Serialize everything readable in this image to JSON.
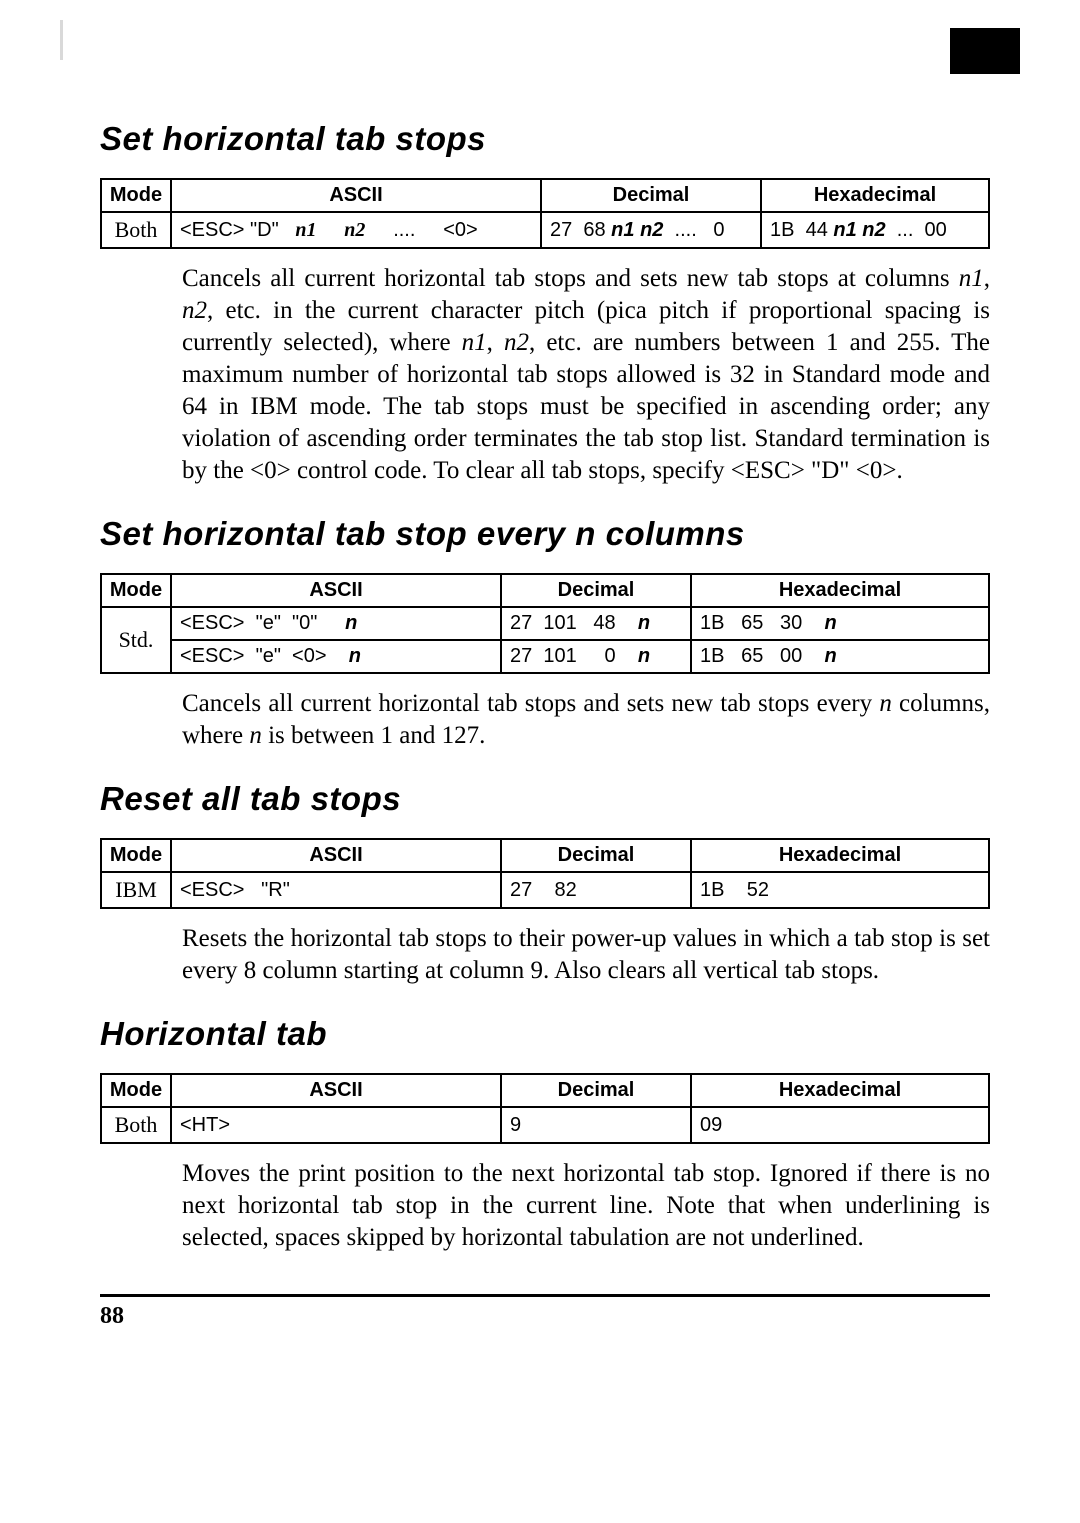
{
  "page_number": "88",
  "sections": [
    {
      "title": "Set horizontal tab stops",
      "table": {
        "headers": [
          "Mode",
          "ASCII",
          "Decimal",
          "Hexadecimal"
        ],
        "rows": [
          {
            "mode": "Both",
            "ascii_html": "&lt;ESC&gt; \"D\"&nbsp;&nbsp;&nbsp;<span class='it'>n1</span>&nbsp;&nbsp;&nbsp;&nbsp;&nbsp;<span class='it'>n2</span>&nbsp;&nbsp;&nbsp;&nbsp;&nbsp;....&nbsp;&nbsp;&nbsp;&nbsp;&nbsp;&lt;0&gt;",
            "dec_html": "27&nbsp;&nbsp;68&nbsp;<span class='it2'>n1</span>&nbsp;<span class='it2'>n2</span>&nbsp;&nbsp;....&nbsp;&nbsp;&nbsp;0",
            "hex_html": "1B&nbsp;&nbsp;44&nbsp;<span class='it2'>n1</span>&nbsp;<span class='it2'>n2</span>&nbsp;&nbsp;...&nbsp;&nbsp;00"
          }
        ]
      },
      "desc_html": "Cancels all current horizontal tab stops and sets new tab stops at columns <span class='it-s'>n1</span>, <span class='it-s'>n2</span>, etc. in the current character pitch (pica pitch if proportional spacing is currently selected), where <span class='it-s'>n1</span>, <span class='it-s'>n2</span>, etc. are numbers between 1 and 255. The maximum number of horizontal tab stops allowed is 32 in Standard mode and 64 in IBM mode. The tab stops must be specified in ascending order; any violation of ascending order terminates the tab stop list. Standard termination is by the &lt;0&gt; control code. To clear all tab stops, specify &lt;ESC&gt; \"D\" &lt;0&gt;."
    },
    {
      "title": "Set horizontal tab stop every n columns",
      "table": {
        "headers": [
          "Mode",
          "ASCII",
          "Decimal",
          "Hexadecimal"
        ],
        "rows_merged_mode": "Std.",
        "rows": [
          {
            "ascii_html": "&lt;ESC&gt;&nbsp;&nbsp;\"e\"&nbsp;&nbsp;\"0\"&nbsp;&nbsp;&nbsp;&nbsp;&nbsp;<span class='it2'>n</span>",
            "dec_html": "27&nbsp;&nbsp;101&nbsp;&nbsp;&nbsp;48&nbsp;&nbsp;&nbsp;&nbsp;<span class='it2'>n</span>",
            "hex_html": "1B&nbsp;&nbsp;&nbsp;65&nbsp;&nbsp;&nbsp;30&nbsp;&nbsp;&nbsp;&nbsp;<span class='it2'>n</span>"
          },
          {
            "ascii_html": "&lt;ESC&gt;&nbsp;&nbsp;\"e\"&nbsp;&nbsp;&lt;0&gt;&nbsp;&nbsp;&nbsp;&nbsp;<span class='it2'>n</span>",
            "dec_html": "27&nbsp;&nbsp;101&nbsp;&nbsp;&nbsp;&nbsp;&nbsp;0&nbsp;&nbsp;&nbsp;&nbsp;<span class='it2'>n</span>",
            "hex_html": "1B&nbsp;&nbsp;&nbsp;65&nbsp;&nbsp;&nbsp;00&nbsp;&nbsp;&nbsp;&nbsp;<span class='it2'>n</span>"
          }
        ]
      },
      "desc_html": "Cancels all current horizontal tab stops and sets new tab stops every <span class='it-s'>n</span> columns, where <span class='it-s'>n</span> is between 1 and 127."
    },
    {
      "title": "Reset all tab stops",
      "table": {
        "headers": [
          "Mode",
          "ASCII",
          "Decimal",
          "Hexadecimal"
        ],
        "rows": [
          {
            "mode": "IBM",
            "ascii_html": "&lt;ESC&gt;&nbsp;&nbsp;&nbsp;\"R\"",
            "dec_html": "27&nbsp;&nbsp;&nbsp;&nbsp;82",
            "hex_html": "1B&nbsp;&nbsp;&nbsp;&nbsp;52"
          }
        ]
      },
      "desc_html": "Resets the horizontal tab stops to their power-up values in which a tab stop is set every 8 column starting at column 9. Also clears all vertical tab stops."
    },
    {
      "title": "Horizontal tab",
      "table": {
        "headers": [
          "Mode",
          "ASCII",
          "Decimal",
          "Hexadecimal"
        ],
        "rows": [
          {
            "mode": "Both",
            "ascii_html": "&lt;HT&gt;",
            "dec_html": "9",
            "hex_html": "09"
          }
        ]
      },
      "desc_html": "Moves the print position to the next horizontal tab stop. Ignored if there is no next horizontal tab stop in the current line. Note that when underlining is selected, spaces skipped by horizontal tabulation are not underlined."
    }
  ]
}
